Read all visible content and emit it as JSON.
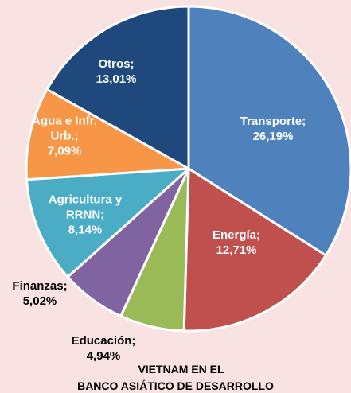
{
  "chart_data": {
    "type": "pie",
    "categories": [
      "Transporte;",
      "Energía;",
      "Educación;",
      "Finanzas;",
      "Agricultura y RRNN;",
      "Agua e Infr. Urb.;",
      "Otros;"
    ],
    "values": [
      26.19,
      12.71,
      4.94,
      5.02,
      8.14,
      7.09,
      13.01
    ],
    "value_labels": [
      "26,19%",
      "12,71%",
      "4,94%",
      "5,02%",
      "8,14%",
      "7,09%",
      "13,01%"
    ],
    "colors": [
      "#4f81bd",
      "#c0504d",
      "#9bbb59",
      "#8064a2",
      "#4bacc6",
      "#f79646",
      "#1f497d"
    ],
    "annotations": [
      "VIETNAM  EN EL",
      "BANCO ASIÁTICO DE DESARROLLO"
    ]
  }
}
